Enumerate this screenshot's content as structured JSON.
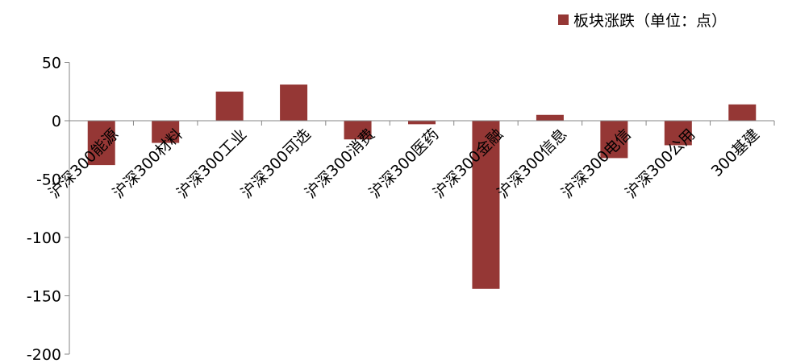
{
  "chart_data": {
    "type": "bar",
    "categories": [
      "沪深300能源",
      "沪深300材料",
      "沪深300工业",
      "沪深300可选",
      "沪深300消费",
      "沪深300医药",
      "沪深300金融",
      "沪深300信息",
      "沪深300电信",
      "沪深300公用",
      "300基建"
    ],
    "series": [
      {
        "name": "板块涨跌（单位：点）",
        "values": [
          -38,
          -19,
          25,
          31,
          -16,
          -3,
          -144,
          5,
          -32,
          -21,
          14
        ],
        "color": "#953735"
      }
    ],
    "yticks": [
      50,
      0,
      -50,
      -100,
      -150,
      -200
    ],
    "ylim": [
      -200,
      50
    ],
    "legend_position": "top-right",
    "grid": false
  }
}
